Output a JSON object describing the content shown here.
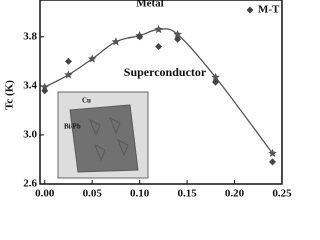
{
  "chart_data": {
    "type": "scatter",
    "y_label": "Tc (K)",
    "annotations": [
      "Metal",
      "Superconductor"
    ],
    "inset_labels": [
      "Cu",
      "Bi/Pb"
    ],
    "xlim": [
      -0.005,
      0.25
    ],
    "ylim": [
      2.6,
      4.1
    ],
    "xticks": [
      {
        "value": 0,
        "label": "0.00"
      },
      {
        "value": 0.05,
        "label": "0.05"
      },
      {
        "value": 0.1,
        "label": "0.10"
      },
      0.15,
      {
        "value": 0.2,
        "label": "0.20"
      },
      0.25
    ],
    "yticks": [
      2.6,
      {
        "value": 3,
        "label": "3.0"
      },
      3.4,
      3.8
    ],
    "fit": {
      "color": "#555555",
      "x": [
        0,
        0.025,
        0.05,
        0.075,
        0.1,
        0.12,
        0.14,
        0.18,
        0.24
      ],
      "values": [
        3.39,
        3.49,
        3.62,
        3.76,
        3.81,
        3.86,
        3.82,
        3.47,
        2.85
      ]
    },
    "series": [
      {
        "name": "M-T",
        "color": "#444444",
        "x": [
          0,
          0.025,
          0.1,
          0.12,
          0.14,
          0.18,
          0.24
        ],
        "values": [
          3.36,
          3.6,
          3.8,
          3.72,
          3.78,
          3.43,
          2.78
        ]
      }
    ]
  }
}
